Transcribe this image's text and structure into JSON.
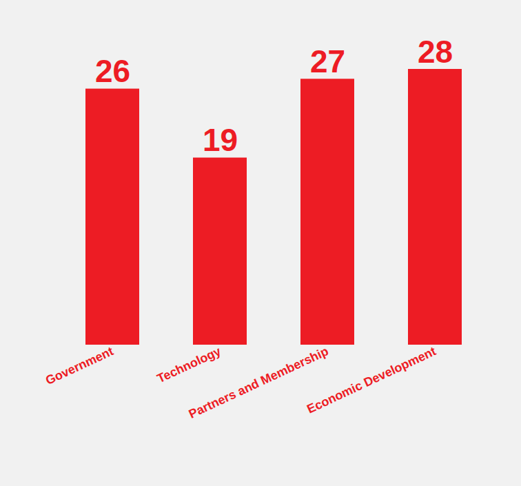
{
  "chart_data": {
    "type": "bar",
    "categories": [
      "Government",
      "Technology",
      "Partners and Membership",
      "Economic Development"
    ],
    "values": [
      26,
      19,
      27,
      28
    ],
    "color": "#ed1c24",
    "data_labels": true,
    "tick_labels": "x",
    "grid": false
  }
}
